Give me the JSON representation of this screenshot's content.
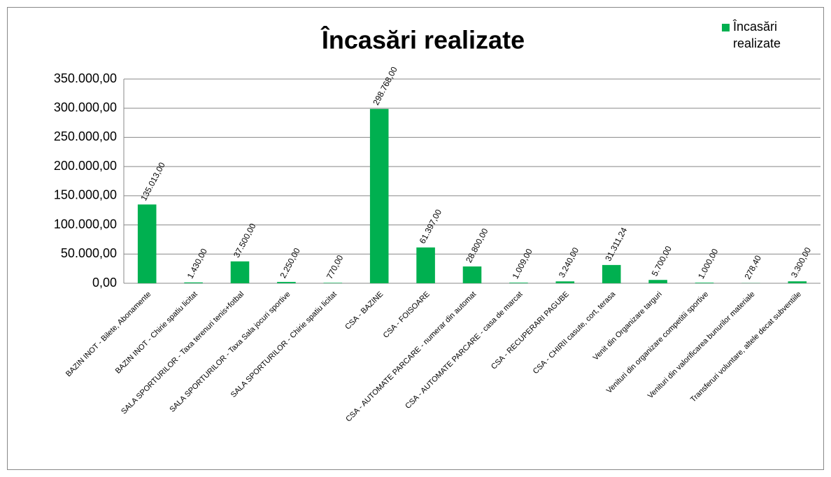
{
  "chart_data": {
    "type": "bar",
    "title": "Încasări realizate",
    "categories": [
      "BAZIN INOT - Bilete, Abonamente",
      "BAZIN INOT - Chirie spatiu licitat",
      "SALA SPORTURILOR - Taxa terenuri tenis+fotbal",
      "SALA SPORTURILOR - Taxa Sala jocuri sportive",
      "SALA SPORTURILOR - Chirie spatiu licitat",
      "CSA - BAZINE",
      "CSA - FOISOARE",
      "CSA - AUTOMATE PARCARE - numerar din automat",
      "CSA - AUTOMATE PARCARE - casa de marcat",
      "CSA - RECUPERARI PAGUBE",
      "CSA - CHIRII casute, cort, terasa",
      "Venit din Organizare targuri",
      "Venituri din organizare competitii sportive",
      "Venituri din valorificarea bunurilor materiale",
      "Transferuri voluntare, altele decat subventiile"
    ],
    "series": [
      {
        "name": "Încasări realizate",
        "color": "#00b050",
        "values": [
          135013,
          1430,
          37500,
          2250,
          770,
          298768,
          61397,
          28800,
          1009,
          3240,
          31311.24,
          5700,
          1000,
          278.4,
          3300
        ],
        "value_labels": [
          "135.013,00",
          "1.430,00",
          "37.500,00",
          "2.250,00",
          "770,00",
          "298.768,00",
          "61.397,00",
          "28.800,00",
          "1.009,00",
          "3.240,00",
          "31.311,24",
          "5.700,00",
          "1.000,00",
          "278,40",
          "3.300,00"
        ]
      }
    ],
    "ylim": [
      0,
      350000
    ],
    "yticks": [
      {
        "value": 0,
        "label": "0,00"
      },
      {
        "value": 50000,
        "label": "50.000,00"
      },
      {
        "value": 100000,
        "label": "100.000,00"
      },
      {
        "value": 150000,
        "label": "150.000,00"
      },
      {
        "value": 200000,
        "label": "200.000,00"
      },
      {
        "value": 250000,
        "label": "250.000,00"
      },
      {
        "value": 300000,
        "label": "300.000,00"
      },
      {
        "value": 350000,
        "label": "350.000,00"
      }
    ],
    "grid": true,
    "legend": "top-right"
  }
}
